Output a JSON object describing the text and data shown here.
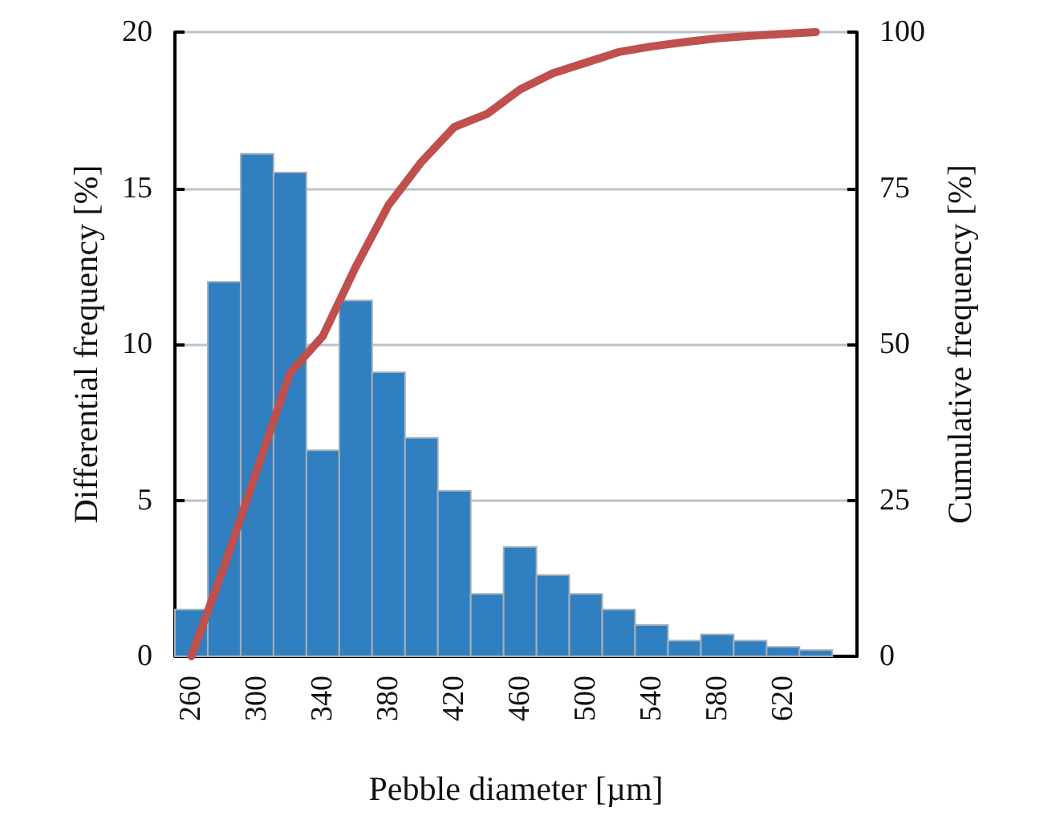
{
  "chart_data": {
    "type": "histogram",
    "xlabel": "Pebble diameter [µm]",
    "ylabel": "Differential frequency [%]",
    "y2label": "Cumulative frequency [%]",
    "xlim": [
      250,
      665
    ],
    "xticks": [
      260,
      300,
      340,
      380,
      420,
      460,
      500,
      540,
      580,
      620
    ],
    "ylim": [
      0,
      20
    ],
    "yticks": [
      0,
      5,
      10,
      15,
      20
    ],
    "y2lim": [
      0,
      100
    ],
    "y2ticks": [
      0,
      25,
      50,
      75,
      100
    ],
    "grid": "y",
    "series": [
      {
        "color": "#2f7fc1",
        "bins": [
          250,
          270,
          290,
          310,
          330,
          350,
          370,
          390,
          410,
          430,
          450,
          470,
          490,
          510,
          530,
          550,
          570,
          590,
          610,
          630,
          650
        ],
        "values": [
          1.5,
          12.0,
          16.1,
          15.5,
          6.6,
          11.4,
          9.1,
          7.0,
          5.3,
          2.0,
          3.5,
          2.6,
          2.0,
          1.5,
          1.0,
          0.5,
          0.7,
          0.5,
          0.3,
          0.2
        ]
      },
      {
        "type": "line",
        "axis": "y2",
        "color": "#c0504d",
        "x": [
          260,
          280,
          300,
          320,
          340,
          360,
          380,
          400,
          420,
          440,
          460,
          480,
          500,
          520,
          540,
          560,
          580,
          600,
          620,
          640
        ],
        "values": [
          0,
          14.4,
          29.9,
          45.4,
          51.3,
          62.4,
          72.3,
          79.2,
          84.8,
          86.9,
          90.8,
          93.4,
          95.1,
          96.8,
          97.7,
          98.4,
          99.0,
          99.4,
          99.7,
          100
        ]
      }
    ]
  }
}
